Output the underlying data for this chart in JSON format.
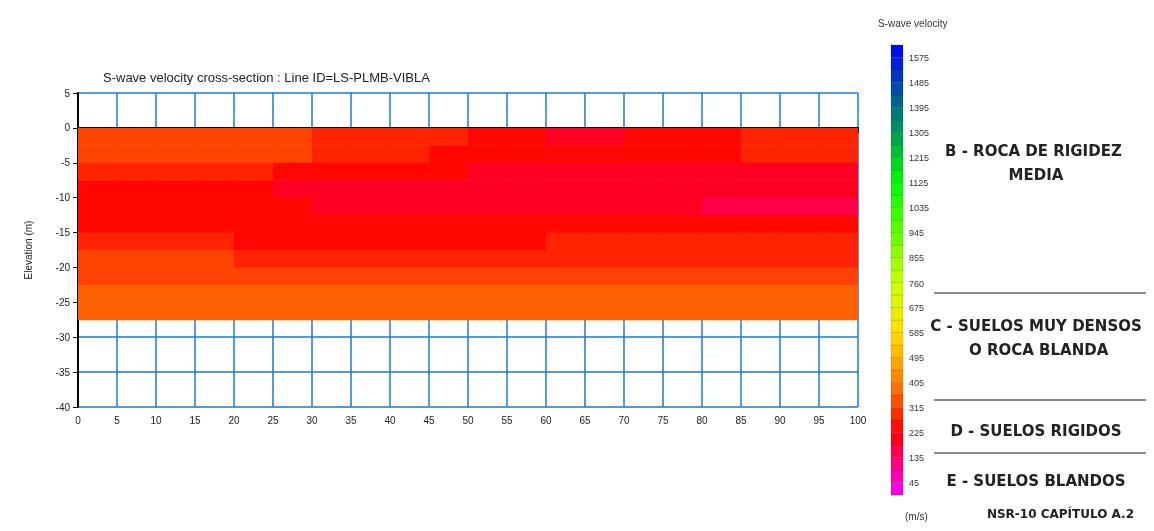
{
  "chart_data": {
    "type": "heatmap",
    "title": "S-wave velocity cross-section : Line ID=LS-PLMB-VIBLA",
    "ylabel": "Elevation (m)",
    "clabel": "S-wave velocity",
    "annotations": [
      "(m/s)",
      "NSR-10 CAPÍTULO A.2",
      "B - ROCA DE RIGIDEZ MEDIA",
      "C - SUELOS MUY DENSOS O ROCA BLANDA",
      "D - SUELOS RIGIDOS",
      "E - SUELOS BLANDOS"
    ],
    "x": [
      2.5,
      7.5,
      12.5,
      17.5,
      22.5,
      27.5,
      32.5,
      37.5,
      42.5,
      47.5,
      52.5,
      57.5,
      62.5,
      67.5,
      72.5,
      77.5,
      82.5,
      87.5,
      92.5,
      97.5
    ],
    "y": [
      -1.25,
      -3.75,
      -6.25,
      -8.75,
      -11.25,
      -13.75,
      -16.25,
      -18.75,
      -21.25,
      -23.75,
      -26.25
    ],
    "cells": [
      [
        320,
        320,
        320,
        320,
        320,
        320,
        275,
        275,
        275,
        275,
        235,
        235,
        195,
        195,
        235,
        235,
        235,
        275,
        275,
        275
      ],
      [
        320,
        320,
        320,
        320,
        320,
        320,
        275,
        275,
        275,
        235,
        235,
        235,
        235,
        235,
        235,
        235,
        235,
        275,
        275,
        275
      ],
      [
        275,
        275,
        275,
        275,
        275,
        235,
        235,
        235,
        235,
        235,
        195,
        195,
        195,
        195,
        195,
        195,
        195,
        195,
        195,
        195
      ],
      [
        235,
        235,
        235,
        235,
        235,
        195,
        195,
        195,
        195,
        195,
        195,
        195,
        195,
        195,
        195,
        195,
        195,
        195,
        195,
        195
      ],
      [
        235,
        235,
        235,
        235,
        235,
        235,
        195,
        195,
        195,
        195,
        195,
        195,
        195,
        195,
        195,
        195,
        160,
        160,
        160,
        160
      ],
      [
        235,
        235,
        235,
        235,
        235,
        235,
        235,
        235,
        235,
        235,
        235,
        235,
        235,
        235,
        235,
        235,
        235,
        235,
        235,
        235
      ],
      [
        275,
        275,
        275,
        275,
        235,
        235,
        235,
        235,
        235,
        235,
        235,
        235,
        275,
        275,
        275,
        275,
        275,
        275,
        275,
        275
      ],
      [
        320,
        320,
        320,
        320,
        275,
        275,
        275,
        275,
        275,
        275,
        275,
        275,
        275,
        275,
        275,
        275,
        275,
        275,
        275,
        275
      ],
      [
        320,
        320,
        320,
        320,
        320,
        320,
        320,
        320,
        320,
        320,
        320,
        320,
        320,
        320,
        320,
        320,
        320,
        320,
        320,
        320
      ],
      [
        360,
        360,
        360,
        360,
        360,
        360,
        360,
        360,
        360,
        360,
        360,
        360,
        360,
        360,
        360,
        360,
        360,
        360,
        360,
        360
      ],
      [
        360,
        360,
        360,
        360,
        360,
        360,
        360,
        360,
        360,
        360,
        360,
        360,
        360,
        360,
        360,
        360,
        360,
        360,
        360,
        360
      ]
    ],
    "xlim": [
      0,
      100
    ],
    "xticks": [
      0,
      5,
      10,
      15,
      20,
      25,
      30,
      35,
      40,
      45,
      50,
      55,
      60,
      65,
      70,
      75,
      80,
      85,
      90,
      95,
      100
    ],
    "ylim": [
      -40,
      5
    ],
    "yticks": [
      -40,
      -35,
      -30,
      -25,
      -20,
      -15,
      -10,
      -5,
      0,
      5
    ],
    "clim": [
      0,
      1620
    ],
    "cticks": [
      45,
      135,
      225,
      315,
      405,
      495,
      585,
      675,
      760,
      855,
      945,
      1035,
      1125,
      1215,
      1305,
      1395,
      1485,
      1575
    ],
    "grid": true
  }
}
